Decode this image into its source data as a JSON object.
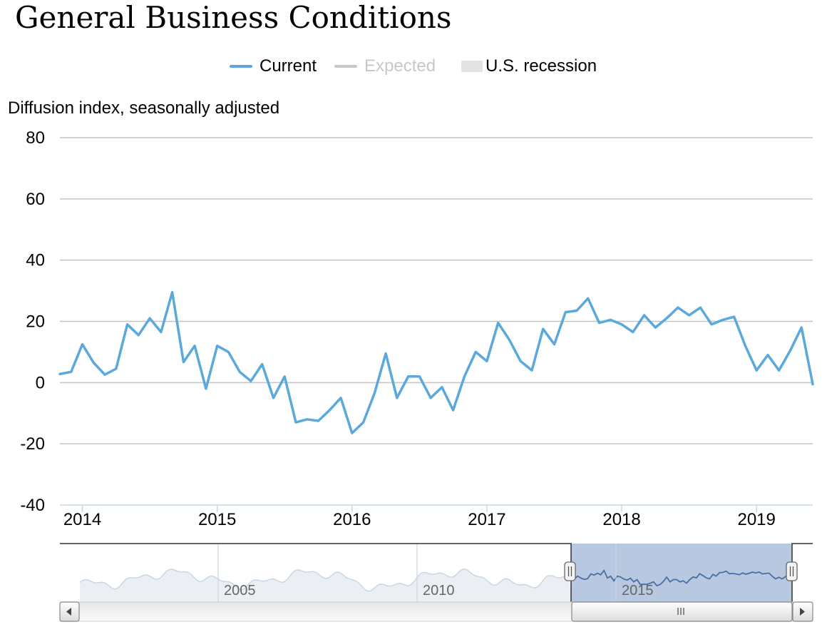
{
  "title": "General Business Conditions",
  "legend": [
    {
      "label": "Current",
      "color": "#5ba8dc",
      "kind": "line",
      "active": true
    },
    {
      "label": "Expected",
      "color": "#c8c8c8",
      "kind": "line",
      "active": false
    },
    {
      "label": "U.S. recession",
      "color": "#e3e3e3",
      "kind": "box",
      "active": true
    }
  ],
  "ylabel": "Diffusion index, seasonally adjusted",
  "chart_data": {
    "type": "line",
    "title": "General Business Conditions",
    "ylabel": "Diffusion index, seasonally adjusted",
    "ylim": [
      -40,
      80
    ],
    "yticks": [
      -40,
      -20,
      0,
      20,
      40,
      60,
      80
    ],
    "xlim": [
      "2013-11",
      "2019-06"
    ],
    "xtick_labels": [
      "2014",
      "2015",
      "2016",
      "2017",
      "2018",
      "2019"
    ],
    "grid": true,
    "legend_position": "top",
    "series": [
      {
        "name": "Current",
        "x": [
          "2013-11",
          "2013-12",
          "2014-01",
          "2014-02",
          "2014-03",
          "2014-04",
          "2014-05",
          "2014-06",
          "2014-07",
          "2014-08",
          "2014-09",
          "2014-10",
          "2014-11",
          "2014-12",
          "2015-01",
          "2015-02",
          "2015-03",
          "2015-04",
          "2015-05",
          "2015-06",
          "2015-07",
          "2015-08",
          "2015-09",
          "2015-10",
          "2015-11",
          "2015-12",
          "2016-01",
          "2016-02",
          "2016-03",
          "2016-04",
          "2016-05",
          "2016-06",
          "2016-07",
          "2016-08",
          "2016-09",
          "2016-10",
          "2016-11",
          "2016-12",
          "2017-01",
          "2017-02",
          "2017-03",
          "2017-04",
          "2017-05",
          "2017-06",
          "2017-07",
          "2017-08",
          "2017-09",
          "2017-10",
          "2017-11",
          "2017-12",
          "2018-01",
          "2018-02",
          "2018-03",
          "2018-04",
          "2018-05",
          "2018-06",
          "2018-07",
          "2018-08",
          "2018-09",
          "2018-10",
          "2018-11",
          "2018-12",
          "2019-01",
          "2019-02",
          "2019-03",
          "2019-04",
          "2019-05",
          "2019-06"
        ],
        "values": [
          2.8,
          3.5,
          12.5,
          6.5,
          2.6,
          4.5,
          19.0,
          15.5,
          21.0,
          16.5,
          29.5,
          6.7,
          12.0,
          -2.0,
          12.0,
          10.0,
          3.5,
          0.5,
          6.0,
          -5.0,
          2.0,
          -13.0,
          -12.0,
          -12.5,
          -9.0,
          -5.0,
          -16.5,
          -13.0,
          -3.5,
          9.5,
          -5.0,
          2.0,
          2.0,
          -5.0,
          -1.5,
          -9.0,
          2.0,
          10.0,
          7.0,
          19.5,
          14.0,
          7.0,
          4.0,
          17.5,
          12.5,
          23.0,
          23.5,
          27.5,
          19.5,
          20.5,
          19.0,
          16.5,
          22.0,
          18.0,
          21.0,
          24.5,
          22.0,
          24.5,
          19.0,
          20.5,
          21.5,
          12.0,
          4.0,
          9.0,
          4.0,
          10.5,
          18.0,
          -0.5
        ]
      }
    ],
    "range_selector": {
      "xtick_labels": [
        "2005",
        "2010",
        "2015"
      ]
    }
  }
}
